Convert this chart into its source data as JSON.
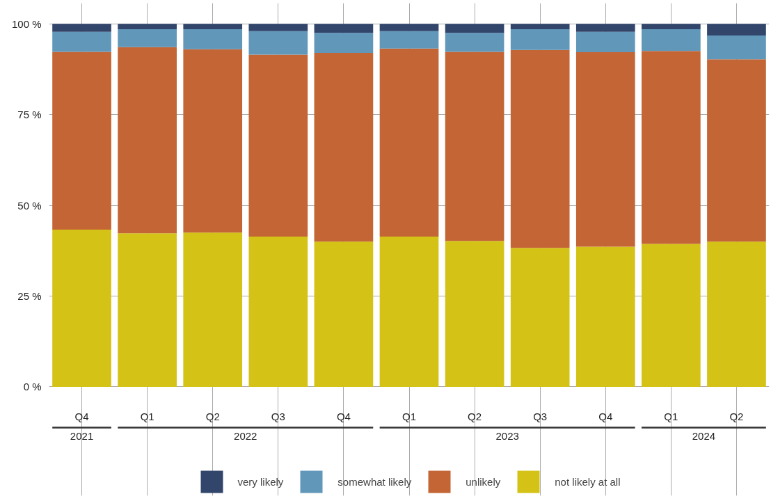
{
  "chart_data": {
    "type": "bar",
    "stacked": true,
    "categories": [
      "Q4",
      "Q1",
      "Q2",
      "Q3",
      "Q4",
      "Q1",
      "Q2",
      "Q3",
      "Q4",
      "Q1",
      "Q2"
    ],
    "series": [
      {
        "name": "not likely at all",
        "color": "#d4c316",
        "values": [
          43.3,
          42.3,
          42.5,
          41.4,
          40.0,
          41.4,
          40.2,
          38.3,
          38.6,
          39.4,
          40.0
        ]
      },
      {
        "name": "unlikely",
        "color": "#c46535",
        "values": [
          49.0,
          51.3,
          50.5,
          50.1,
          52.0,
          51.8,
          52.1,
          54.5,
          53.6,
          53.1,
          50.2
        ]
      },
      {
        "name": "somewhat likely",
        "color": "#6198ba",
        "values": [
          5.5,
          4.9,
          5.5,
          6.5,
          5.5,
          4.8,
          5.2,
          5.7,
          5.6,
          6.0,
          6.6
        ]
      },
      {
        "name": "very likely",
        "color": "#32466b",
        "values": [
          2.2,
          1.5,
          1.5,
          2.0,
          2.5,
          2.0,
          2.5,
          1.5,
          2.2,
          1.5,
          3.2
        ]
      }
    ],
    "ylim": [
      0,
      100
    ],
    "yticks": [
      {
        "value": 0,
        "label": "0 %"
      },
      {
        "value": 25,
        "label": "25 %"
      },
      {
        "value": 50,
        "label": "50 %"
      },
      {
        "value": 75,
        "label": "75 %"
      },
      {
        "value": 100,
        "label": "100 %"
      }
    ],
    "annotations": [
      "2021",
      "2022",
      "2023",
      "2024"
    ],
    "grid": true,
    "legend": "bottom"
  }
}
